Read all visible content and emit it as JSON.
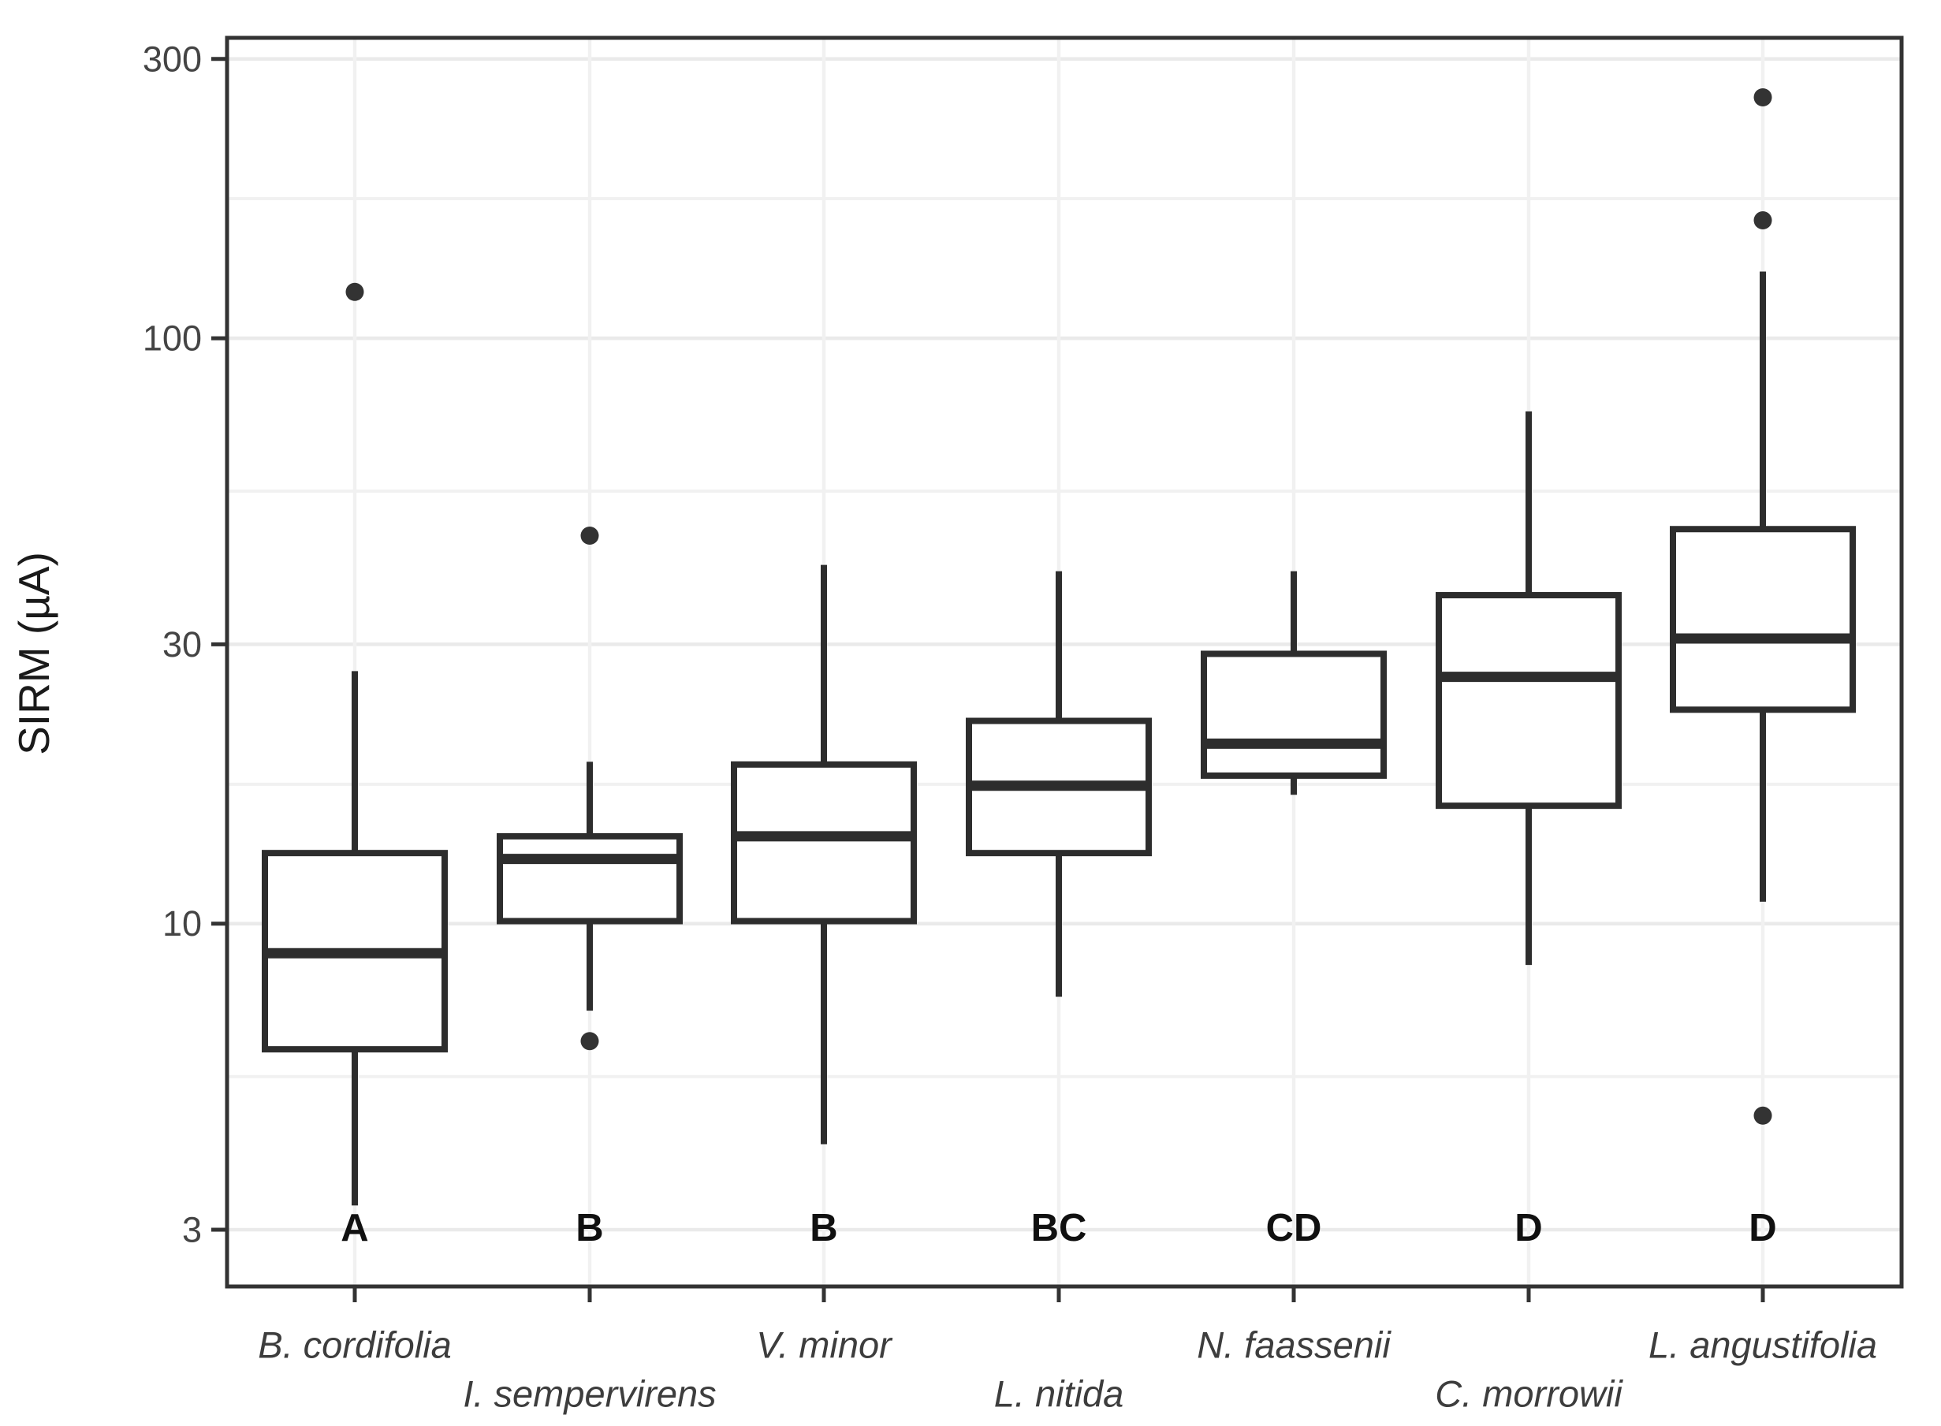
{
  "chart_data": {
    "type": "boxplot",
    "title": "",
    "xlabel": "",
    "ylabel": "SIRM (µA)",
    "y_scale": "log10",
    "ylim": [
      2.4,
      326
    ],
    "y_ticks": [
      300,
      100,
      30,
      10,
      3
    ],
    "y_minor_gridlines": [
      173.2,
      54.8,
      17.3,
      5.48
    ],
    "grid": true,
    "legend_position": "none",
    "units": "µA",
    "categories": [
      {
        "label": "B. cordifolia",
        "label_row": 1,
        "significance_letter": "A",
        "stats": {
          "whisker_low": 3.3,
          "q1": 6.1,
          "median": 8.9,
          "q3": 13.2,
          "whisker_high": 27
        },
        "outliers": [
          120
        ]
      },
      {
        "label": "I. sempervirens",
        "label_row": 2,
        "significance_letter": "B",
        "stats": {
          "whisker_low": 7.1,
          "q1": 10.1,
          "median": 12.9,
          "q3": 14.1,
          "whisker_high": 18.9
        },
        "outliers": [
          46,
          6.3
        ]
      },
      {
        "label": "V. minor",
        "label_row": 1,
        "significance_letter": "B",
        "stats": {
          "whisker_low": 4.2,
          "q1": 10.1,
          "median": 14.1,
          "q3": 18.7,
          "whisker_high": 41
        },
        "outliers": []
      },
      {
        "label": "L. nitida",
        "label_row": 2,
        "significance_letter": "BC",
        "stats": {
          "whisker_low": 7.5,
          "q1": 13.2,
          "median": 17.2,
          "q3": 22.2,
          "whisker_high": 40
        },
        "outliers": []
      },
      {
        "label": "N. faassenii",
        "label_row": 1,
        "significance_letter": "CD",
        "stats": {
          "whisker_low": 16.6,
          "q1": 17.9,
          "median": 20.3,
          "q3": 28.9,
          "whisker_high": 40
        },
        "outliers": []
      },
      {
        "label": "C. morrowii",
        "label_row": 2,
        "significance_letter": "D",
        "stats": {
          "whisker_low": 8.5,
          "q1": 15.9,
          "median": 26.4,
          "q3": 36.4,
          "whisker_high": 75
        },
        "outliers": []
      },
      {
        "label": "L. angustifolia",
        "label_row": 1,
        "significance_letter": "D",
        "stats": {
          "whisker_low": 10.9,
          "q1": 23.2,
          "median": 30.7,
          "q3": 47.2,
          "whisker_high": 130
        },
        "outliers": [
          258,
          159,
          4.7
        ]
      }
    ],
    "colors": {
      "box_stroke": "#2d2d2d",
      "box_fill": "#ffffff",
      "median": "#2d2d2d",
      "whisker": "#2d2d2d",
      "outlier": "#333333",
      "panel_border": "#333333",
      "gridline_major": "#eaeaea",
      "gridline_minor": "#f1f1f1",
      "tick_mark": "#333333",
      "background": "#ffffff"
    }
  }
}
